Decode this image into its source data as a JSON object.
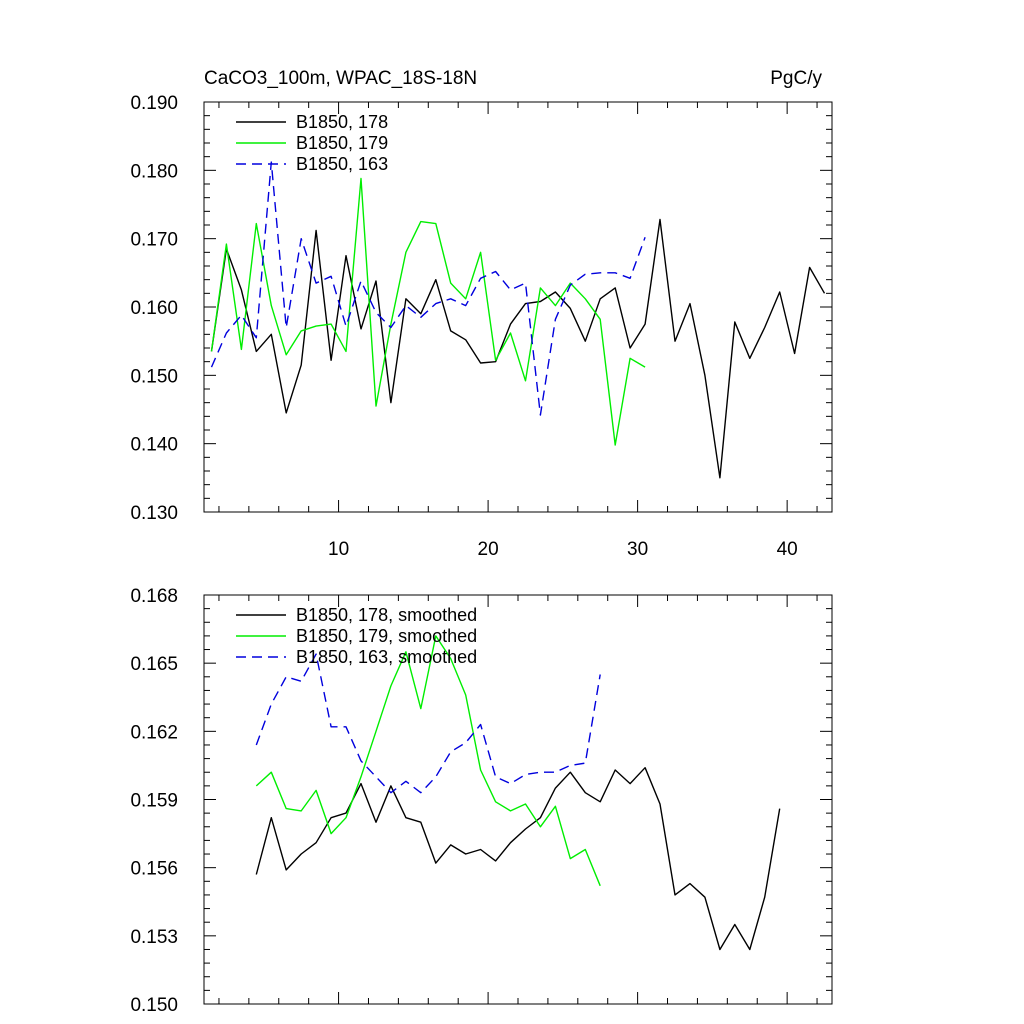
{
  "chart_data": [
    {
      "type": "line",
      "title": "CaCO3_100m, WPAC_18S-18N",
      "units": "PgC/y",
      "xlim": [
        1,
        43
      ],
      "ylim": [
        0.13,
        0.19
      ],
      "xticks": [
        10,
        20,
        30,
        40
      ],
      "xtick_labels": [
        "10",
        "20",
        "30",
        "40"
      ],
      "yticks": [
        0.13,
        0.14,
        0.15,
        0.16,
        0.17,
        0.18,
        0.19
      ],
      "ytick_labels": [
        "0.130",
        "0.140",
        "0.150",
        "0.160",
        "0.170",
        "0.180",
        "0.190"
      ],
      "legend_position": "top-left",
      "series": [
        {
          "name": "B1850, 178",
          "color": "#000000",
          "dash": "solid",
          "x": [
            1.5,
            2.5,
            3.5,
            4.5,
            5.5,
            6.5,
            7.5,
            8.5,
            9.5,
            10.5,
            11.5,
            12.5,
            13.5,
            14.5,
            15.5,
            16.5,
            17.5,
            18.5,
            19.5,
            20.5,
            21.5,
            22.5,
            23.5,
            24.5,
            25.5,
            26.5,
            27.5,
            28.5,
            29.5,
            30.5,
            31.5,
            32.5,
            33.5,
            34.5,
            35.5,
            36.5,
            37.5,
            38.5,
            39.5,
            40.5,
            41.5,
            42.5
          ],
          "y": [
            0.1535,
            0.1685,
            0.1625,
            0.1535,
            0.156,
            0.1445,
            0.1515,
            0.1712,
            0.1522,
            0.1675,
            0.1568,
            0.1638,
            0.146,
            0.1612,
            0.159,
            0.164,
            0.1565,
            0.1552,
            0.1518,
            0.152,
            0.1575,
            0.1605,
            0.1608,
            0.1622,
            0.1598,
            0.155,
            0.1612,
            0.1628,
            0.154,
            0.1575,
            0.1728,
            0.155,
            0.1605,
            0.15,
            0.135,
            0.1578,
            0.1525,
            0.157,
            0.1622,
            0.1532,
            0.1658,
            0.162
          ]
        },
        {
          "name": "B1850, 179",
          "color": "#00ee00",
          "dash": "solid",
          "x": [
            1.5,
            2.5,
            3.5,
            4.5,
            5.5,
            6.5,
            7.5,
            8.5,
            9.5,
            10.5,
            11.5,
            12.5,
            13.5,
            14.5,
            15.5,
            16.5,
            17.5,
            18.5,
            19.5,
            20.5,
            21.5,
            22.5,
            23.5,
            24.5,
            25.5,
            26.5,
            27.5,
            28.5,
            29.5,
            30.5
          ],
          "y": [
            0.1535,
            0.1692,
            0.1538,
            0.1722,
            0.1602,
            0.153,
            0.1565,
            0.1572,
            0.1575,
            0.1535,
            0.1788,
            0.1455,
            0.1575,
            0.168,
            0.1725,
            0.1722,
            0.1635,
            0.1612,
            0.168,
            0.1522,
            0.1562,
            0.1492,
            0.1628,
            0.1602,
            0.1635,
            0.1612,
            0.1582,
            0.1398,
            0.1525,
            0.1512
          ]
        },
        {
          "name": "B1850, 163",
          "color": "#0000dd",
          "dash": "dashed",
          "x": [
            1.5,
            2.5,
            3.5,
            4.5,
            5.5,
            6.5,
            7.5,
            8.5,
            9.5,
            10.5,
            11.5,
            12.5,
            13.5,
            14.5,
            15.5,
            16.5,
            17.5,
            18.5,
            19.5,
            20.5,
            21.5,
            22.5,
            23.5,
            24.5,
            25.5,
            26.5,
            27.5,
            28.5,
            29.5,
            30.5
          ],
          "y": [
            0.1512,
            0.1562,
            0.1588,
            0.1555,
            0.1812,
            0.157,
            0.17,
            0.1635,
            0.1645,
            0.1572,
            0.1638,
            0.1592,
            0.157,
            0.1602,
            0.1585,
            0.1605,
            0.1612,
            0.1602,
            0.1642,
            0.1652,
            0.1625,
            0.1635,
            0.1442,
            0.1582,
            0.1632,
            0.1648,
            0.165,
            0.165,
            0.1642,
            0.1702
          ]
        }
      ]
    },
    {
      "type": "line",
      "xlim": [
        1,
        43
      ],
      "ylim": [
        0.15,
        0.168
      ],
      "xticks": [
        10,
        20,
        30,
        40
      ],
      "yticks": [
        0.15,
        0.153,
        0.156,
        0.159,
        0.162,
        0.165,
        0.168
      ],
      "ytick_labels": [
        "0.150",
        "0.153",
        "0.156",
        "0.159",
        "0.162",
        "0.165",
        "0.168"
      ],
      "legend_position": "top-left",
      "series": [
        {
          "name": "B1850, 178, smoothed",
          "color": "#000000",
          "dash": "solid",
          "x": [
            4.5,
            5.5,
            6.5,
            7.5,
            8.5,
            9.5,
            10.5,
            11.5,
            12.5,
            13.5,
            14.5,
            15.5,
            16.5,
            17.5,
            18.5,
            19.5,
            20.5,
            21.5,
            22.5,
            23.5,
            24.5,
            25.5,
            26.5,
            27.5,
            28.5,
            29.5,
            30.5,
            31.5,
            32.5,
            33.5,
            34.5,
            35.5,
            36.5,
            37.5,
            38.5,
            39.5
          ],
          "y": [
            0.1557,
            0.1582,
            0.1559,
            0.1566,
            0.1571,
            0.1582,
            0.1584,
            0.1597,
            0.158,
            0.1596,
            0.1582,
            0.158,
            0.1562,
            0.157,
            0.1566,
            0.1568,
            0.1563,
            0.1571,
            0.1577,
            0.1582,
            0.1595,
            0.1602,
            0.1593,
            0.1589,
            0.1603,
            0.1597,
            0.1604,
            0.1588,
            0.1548,
            0.1553,
            0.1547,
            0.1524,
            0.1535,
            0.1524,
            0.1547,
            0.1586
          ]
        },
        {
          "name": "B1850, 179, smoothed",
          "color": "#00ee00",
          "dash": "solid",
          "x": [
            4.5,
            5.5,
            6.5,
            7.5,
            8.5,
            9.5,
            10.5,
            11.5,
            12.5,
            13.5,
            14.5,
            15.5,
            16.5,
            17.5,
            18.5,
            19.5,
            20.5,
            21.5,
            22.5,
            23.5,
            24.5,
            25.5,
            26.5,
            27.5
          ],
          "y": [
            0.1596,
            0.1602,
            0.1586,
            0.1585,
            0.1594,
            0.1575,
            0.1582,
            0.16,
            0.162,
            0.164,
            0.1655,
            0.163,
            0.1662,
            0.1652,
            0.1636,
            0.1603,
            0.1589,
            0.1585,
            0.1588,
            0.1578,
            0.1587,
            0.1564,
            0.1568,
            0.1552
          ]
        },
        {
          "name": "B1850, 163, smoothed",
          "color": "#0000dd",
          "dash": "dashed",
          "x": [
            4.5,
            5.5,
            6.5,
            7.5,
            8.5,
            9.5,
            10.5,
            11.5,
            12.5,
            13.5,
            14.5,
            15.5,
            16.5,
            17.5,
            18.5,
            19.5,
            20.5,
            21.5,
            22.5,
            23.5,
            24.5,
            25.5,
            26.5,
            27.5
          ],
          "y": [
            0.1614,
            0.1632,
            0.1644,
            0.1642,
            0.1654,
            0.1622,
            0.1622,
            0.1607,
            0.16,
            0.1593,
            0.1598,
            0.1593,
            0.16,
            0.1611,
            0.1615,
            0.1623,
            0.16,
            0.1597,
            0.1601,
            0.1602,
            0.1602,
            0.1605,
            0.1606,
            0.1645
          ]
        }
      ]
    }
  ]
}
